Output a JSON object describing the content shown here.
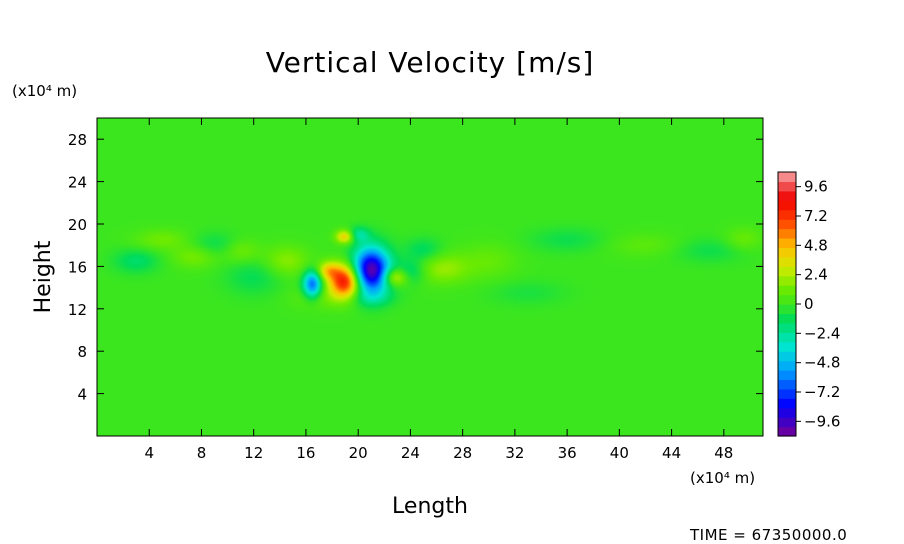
{
  "chart_data": {
    "type": "heatmap",
    "title": "Vertical Velocity [m/s]",
    "xlabel": "Length",
    "ylabel": "Height",
    "x_unit": "(x10⁴ m)",
    "y_unit": "(x10⁴ m)",
    "xlim": [
      0,
      51
    ],
    "ylim": [
      0,
      30
    ],
    "x_ticks": [
      "4",
      "8",
      "12",
      "16",
      "20",
      "24",
      "28",
      "32",
      "36",
      "40",
      "44",
      "48"
    ],
    "y_ticks": [
      "4",
      "8",
      "12",
      "16",
      "20",
      "24",
      "28"
    ],
    "colorbar": {
      "min": -10.8,
      "max": 10.8,
      "tick_labels": [
        "9.6",
        "7.2",
        "4.8",
        "2.4",
        "0",
        "−2.4",
        "−4.8",
        "−7.2",
        "−9.6"
      ],
      "tick_values": [
        9.6,
        7.2,
        4.8,
        2.4,
        0,
        -2.4,
        -4.8,
        -7.2,
        -9.6
      ]
    },
    "background_value": 0,
    "features": [
      {
        "x": 21.0,
        "y": 15.6,
        "sx": 1.0,
        "sy": 1.5,
        "value": -10.5
      },
      {
        "x": 19.0,
        "y": 14.6,
        "sx": 0.85,
        "sy": 1.1,
        "value": 8.5
      },
      {
        "x": 16.5,
        "y": 14.3,
        "sx": 0.5,
        "sy": 0.9,
        "value": -6.5
      },
      {
        "x": 17.7,
        "y": 15.6,
        "sx": 0.6,
        "sy": 0.6,
        "value": 3.5
      },
      {
        "x": 22.8,
        "y": 15.0,
        "sx": 0.7,
        "sy": 0.6,
        "value": 4.0
      },
      {
        "x": 19.0,
        "y": 18.8,
        "sx": 0.5,
        "sy": 0.45,
        "value": 4.5
      },
      {
        "x": 20.0,
        "y": 19.0,
        "sx": 0.6,
        "sy": 0.5,
        "value": -2.5
      },
      {
        "x": 14.5,
        "y": 16.5,
        "sx": 1.2,
        "sy": 1.0,
        "value": 1.8
      },
      {
        "x": 26.5,
        "y": 15.8,
        "sx": 1.4,
        "sy": 1.0,
        "value": 2.0
      },
      {
        "x": 25.0,
        "y": 17.5,
        "sx": 1.0,
        "sy": 0.8,
        "value": -1.5
      },
      {
        "x": 24.0,
        "y": 15.5,
        "sx": 0.8,
        "sy": 0.8,
        "value": -2.0
      },
      {
        "x": 12.0,
        "y": 15.0,
        "sx": 1.5,
        "sy": 1.2,
        "value": -1.2
      },
      {
        "x": 30.0,
        "y": 16.5,
        "sx": 1.5,
        "sy": 1.2,
        "value": 1.0
      },
      {
        "x": 5.0,
        "y": 18.5,
        "sx": 1.5,
        "sy": 0.7,
        "value": 1.3
      },
      {
        "x": 9.0,
        "y": 18.0,
        "sx": 1.5,
        "sy": 0.8,
        "value": -1.3
      },
      {
        "x": 3.0,
        "y": 16.5,
        "sx": 1.2,
        "sy": 0.8,
        "value": -1.6
      },
      {
        "x": 7.5,
        "y": 17.0,
        "sx": 1.2,
        "sy": 0.8,
        "value": 1.6
      },
      {
        "x": 11.0,
        "y": 17.5,
        "sx": 1.0,
        "sy": 0.8,
        "value": 1.5
      },
      {
        "x": 36.0,
        "y": 18.5,
        "sx": 2.0,
        "sy": 0.8,
        "value": -1.0
      },
      {
        "x": 42.0,
        "y": 18.0,
        "sx": 2.0,
        "sy": 0.8,
        "value": 0.8
      },
      {
        "x": 47.0,
        "y": 17.5,
        "sx": 2.0,
        "sy": 0.8,
        "value": -1.0
      },
      {
        "x": 49.5,
        "y": 18.5,
        "sx": 1.0,
        "sy": 0.8,
        "value": 1.2
      },
      {
        "x": 17.0,
        "y": 13.0,
        "sx": 1.5,
        "sy": 0.8,
        "value": 1.0
      },
      {
        "x": 21.0,
        "y": 13.0,
        "sx": 1.2,
        "sy": 0.6,
        "value": -1.2
      },
      {
        "x": 33.0,
        "y": 13.5,
        "sx": 2.0,
        "sy": 0.8,
        "value": -0.7
      }
    ]
  },
  "footer": {
    "time_label": "TIME  =  67350000.0"
  }
}
